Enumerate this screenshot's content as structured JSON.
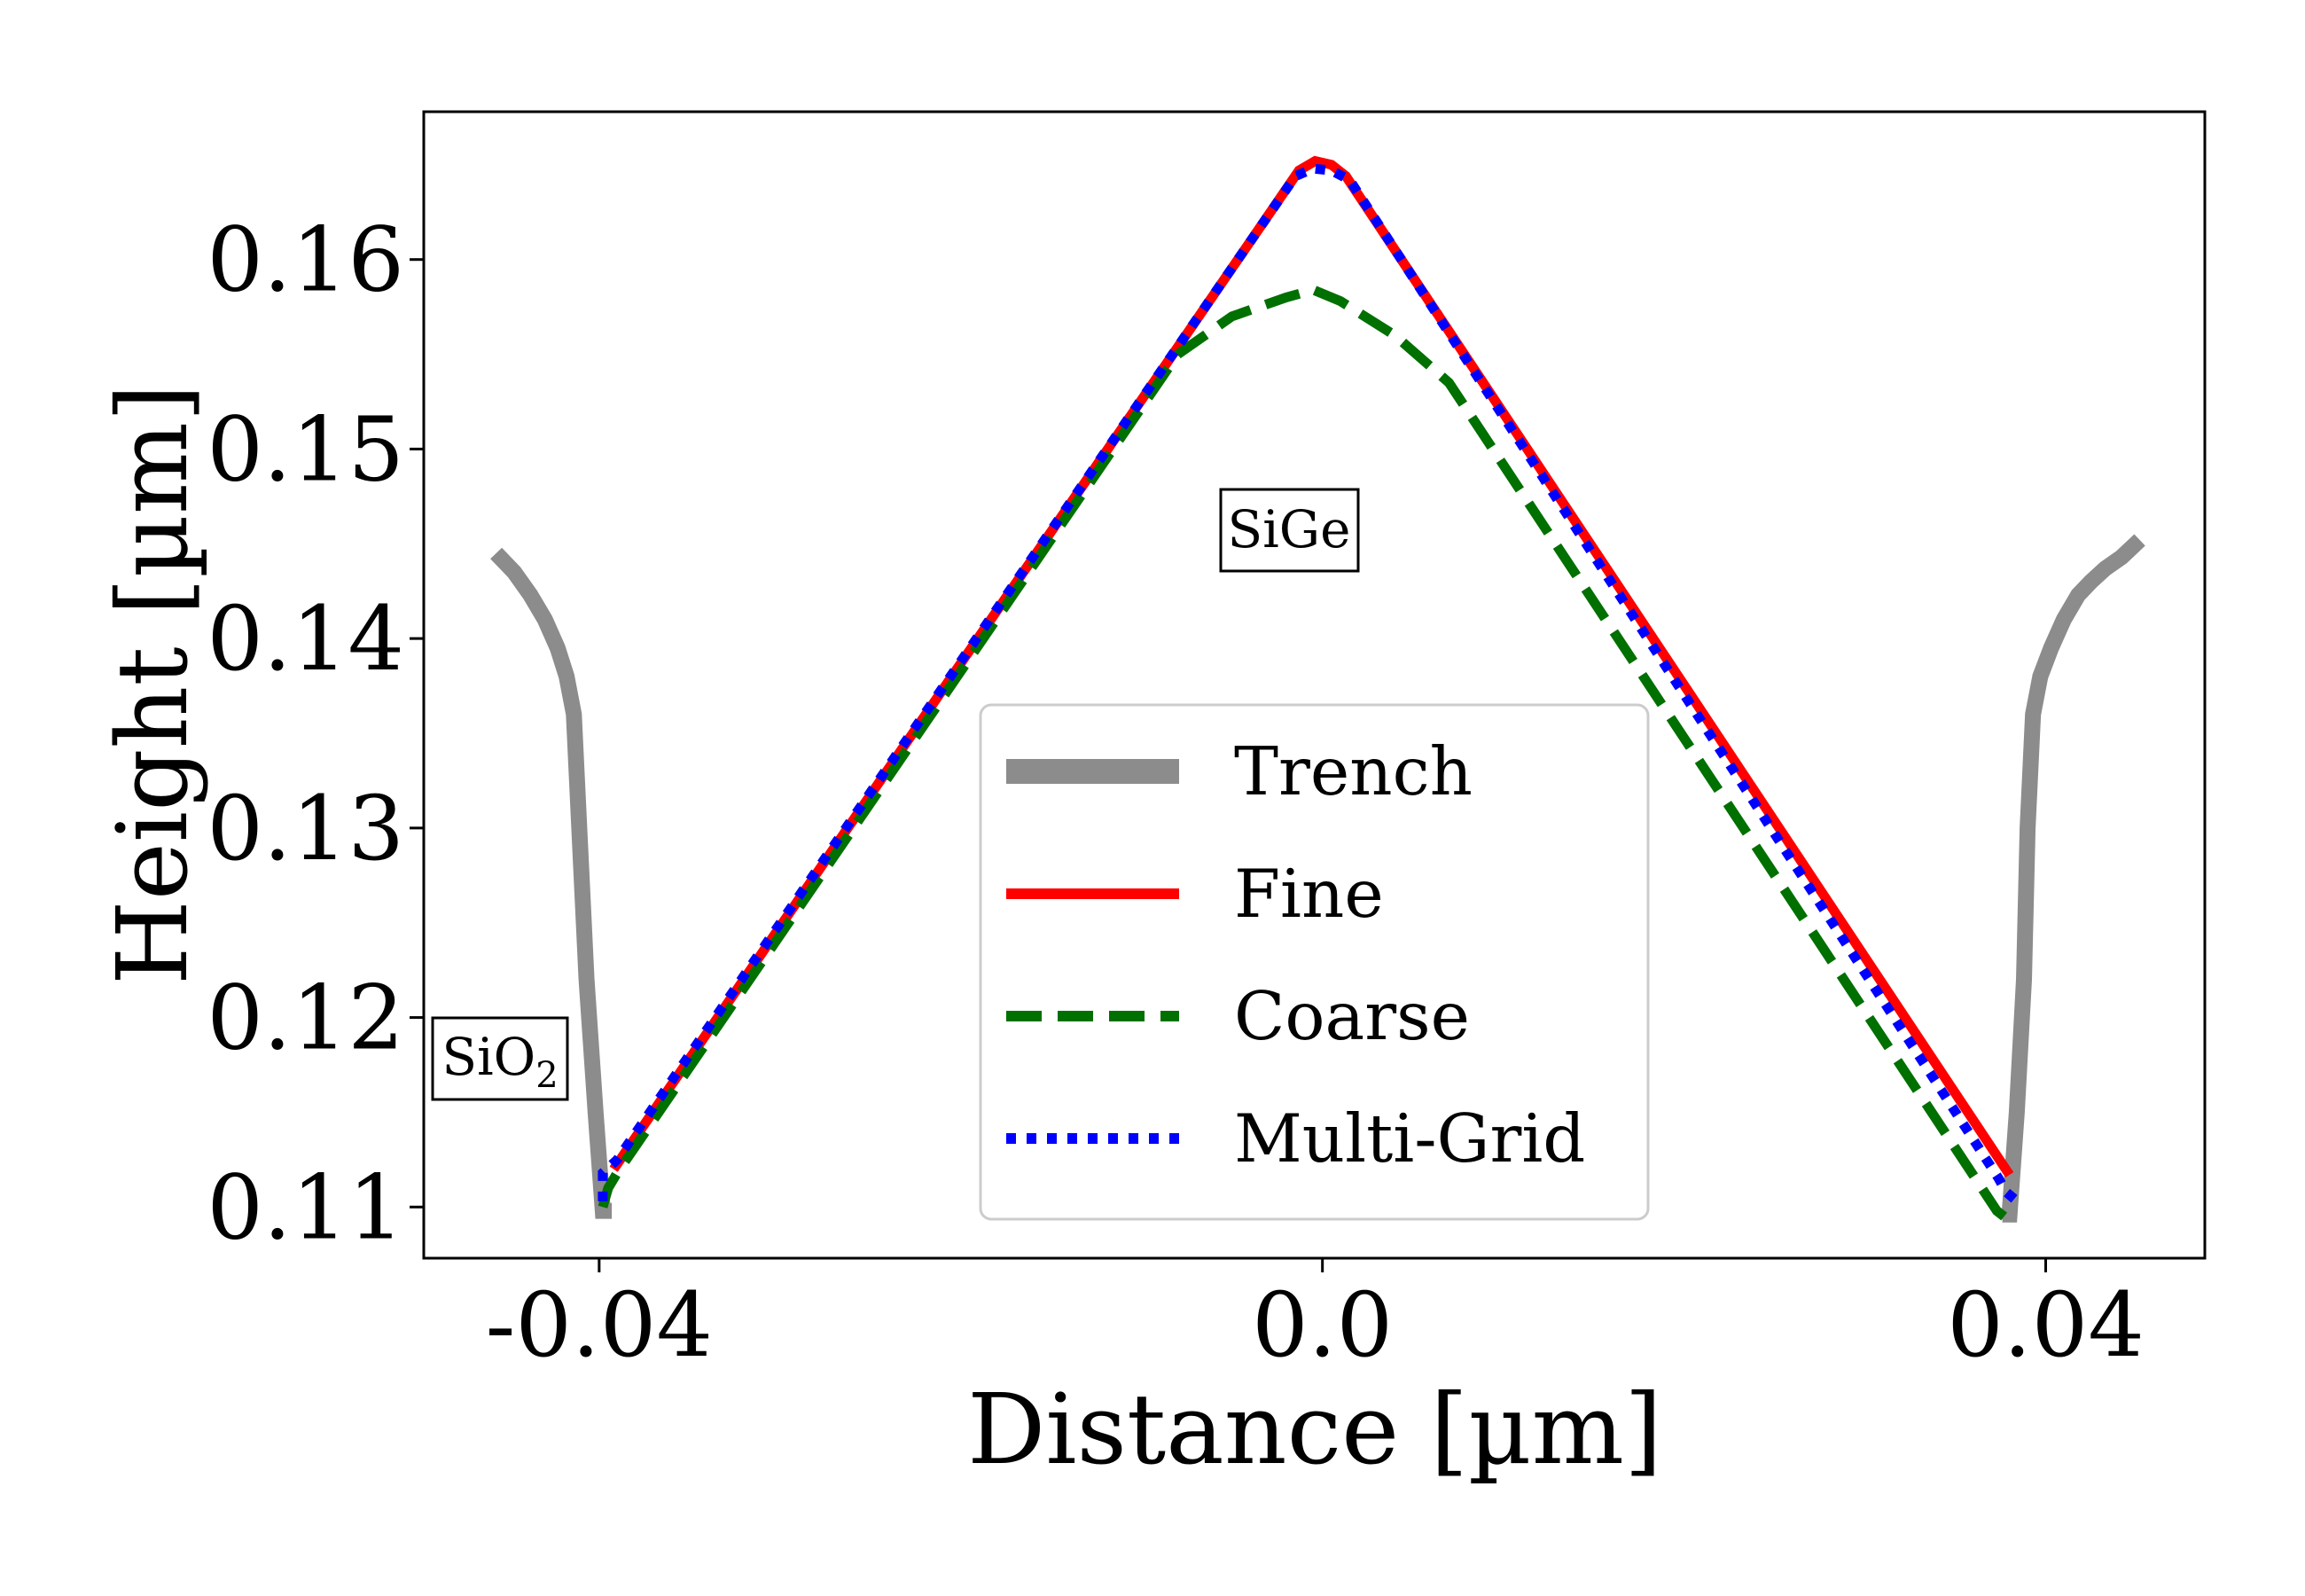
{
  "chart_data": {
    "type": "line",
    "xlabel": "Distance [µm]",
    "ylabel": "Height [µm]",
    "xlim": [
      -0.0497,
      0.0488
    ],
    "ylim": [
      0.1073,
      0.1678
    ],
    "xticks": [
      -0.04,
      0.0,
      0.04
    ],
    "xtick_labels": [
      "-0.04",
      "0.0",
      "0.04"
    ],
    "yticks": [
      0.11,
      0.12,
      0.13,
      0.14,
      0.15,
      0.16
    ],
    "ytick_labels": [
      "0.11",
      "0.12",
      "0.13",
      "0.14",
      "0.15",
      "0.16"
    ],
    "grid": false,
    "legend_position": "center-right",
    "annotations": [
      {
        "text": "SiGe",
        "x": -0.0015,
        "y": 0.1457
      },
      {
        "text": "SiO",
        "sub": "2",
        "x": -0.0452,
        "y": 0.1178
      }
    ],
    "colors": {
      "trench": "#8c8c8c",
      "fine": "#ff0000",
      "coarse": "#007000",
      "multigrid": "#0000ff"
    },
    "series": [
      {
        "name": "Trench",
        "color": "#8c8c8c",
        "style": "solid-thick",
        "segments": [
          {
            "x": [
              -0.0457,
              -0.0447,
              -0.0438,
              -0.043,
              -0.0423,
              -0.0418,
              -0.0414,
              -0.0411,
              -0.0407,
              -0.0402,
              -0.0398,
              -0.0393
            ],
            "y": [
              0.1445,
              0.1435,
              0.1423,
              0.141,
              0.1395,
              0.138,
              0.136,
              0.13,
              0.122,
              0.115,
              0.1098,
              0.1098
            ]
          },
          {
            "x": [
              0.0376,
              0.038,
              0.0384,
              0.0388,
              0.039,
              0.0393,
              0.0397,
              0.0403,
              0.041,
              0.0418,
              0.0425,
              0.0433,
              0.0442,
              0.0452
            ],
            "y": [
              0.1096,
              0.1096,
              0.115,
              0.122,
              0.13,
              0.136,
              0.138,
              0.1395,
              0.141,
              0.1423,
              0.143,
              0.1437,
              0.1443,
              0.1452
            ]
          }
        ]
      },
      {
        "name": "Fine",
        "color": "#ff0000",
        "style": "solid",
        "segments": [
          {
            "x": [
              -0.0392,
              -0.0013,
              -0.0004,
              0.0005,
              0.0013,
              0.038
            ],
            "y": [
              0.112,
              0.1647,
              0.1652,
              0.165,
              0.1644,
              0.1117
            ]
          }
        ]
      },
      {
        "name": "Coarse",
        "color": "#007000",
        "style": "dashed",
        "segments": [
          {
            "x": [
              -0.0398,
              -0.0395,
              -0.039,
              -0.008,
              -0.005,
              -0.002,
              -0.0005,
              0.001,
              0.004,
              0.007,
              0.0373,
              0.0377
            ],
            "y": [
              0.11,
              0.111,
              0.1118,
              0.155,
              0.157,
              0.158,
              0.1584,
              0.1578,
              0.156,
              0.1535,
              0.1098,
              0.1095
            ]
          }
        ]
      },
      {
        "name": "Multi-Grid",
        "color": "#0000ff",
        "style": "dotted",
        "segments": [
          {
            "x": [
              -0.0398,
              -0.0398,
              -0.039,
              -0.0015,
              -0.0005,
              0.0005,
              0.0015,
              0.0374,
              0.0378,
              0.0383,
              0.0385
            ],
            "y": [
              0.1103,
              0.1118,
              0.1125,
              0.1644,
              0.1648,
              0.1647,
              0.1642,
              0.1115,
              0.1108,
              0.1104,
              0.1108
            ]
          }
        ]
      }
    ]
  }
}
